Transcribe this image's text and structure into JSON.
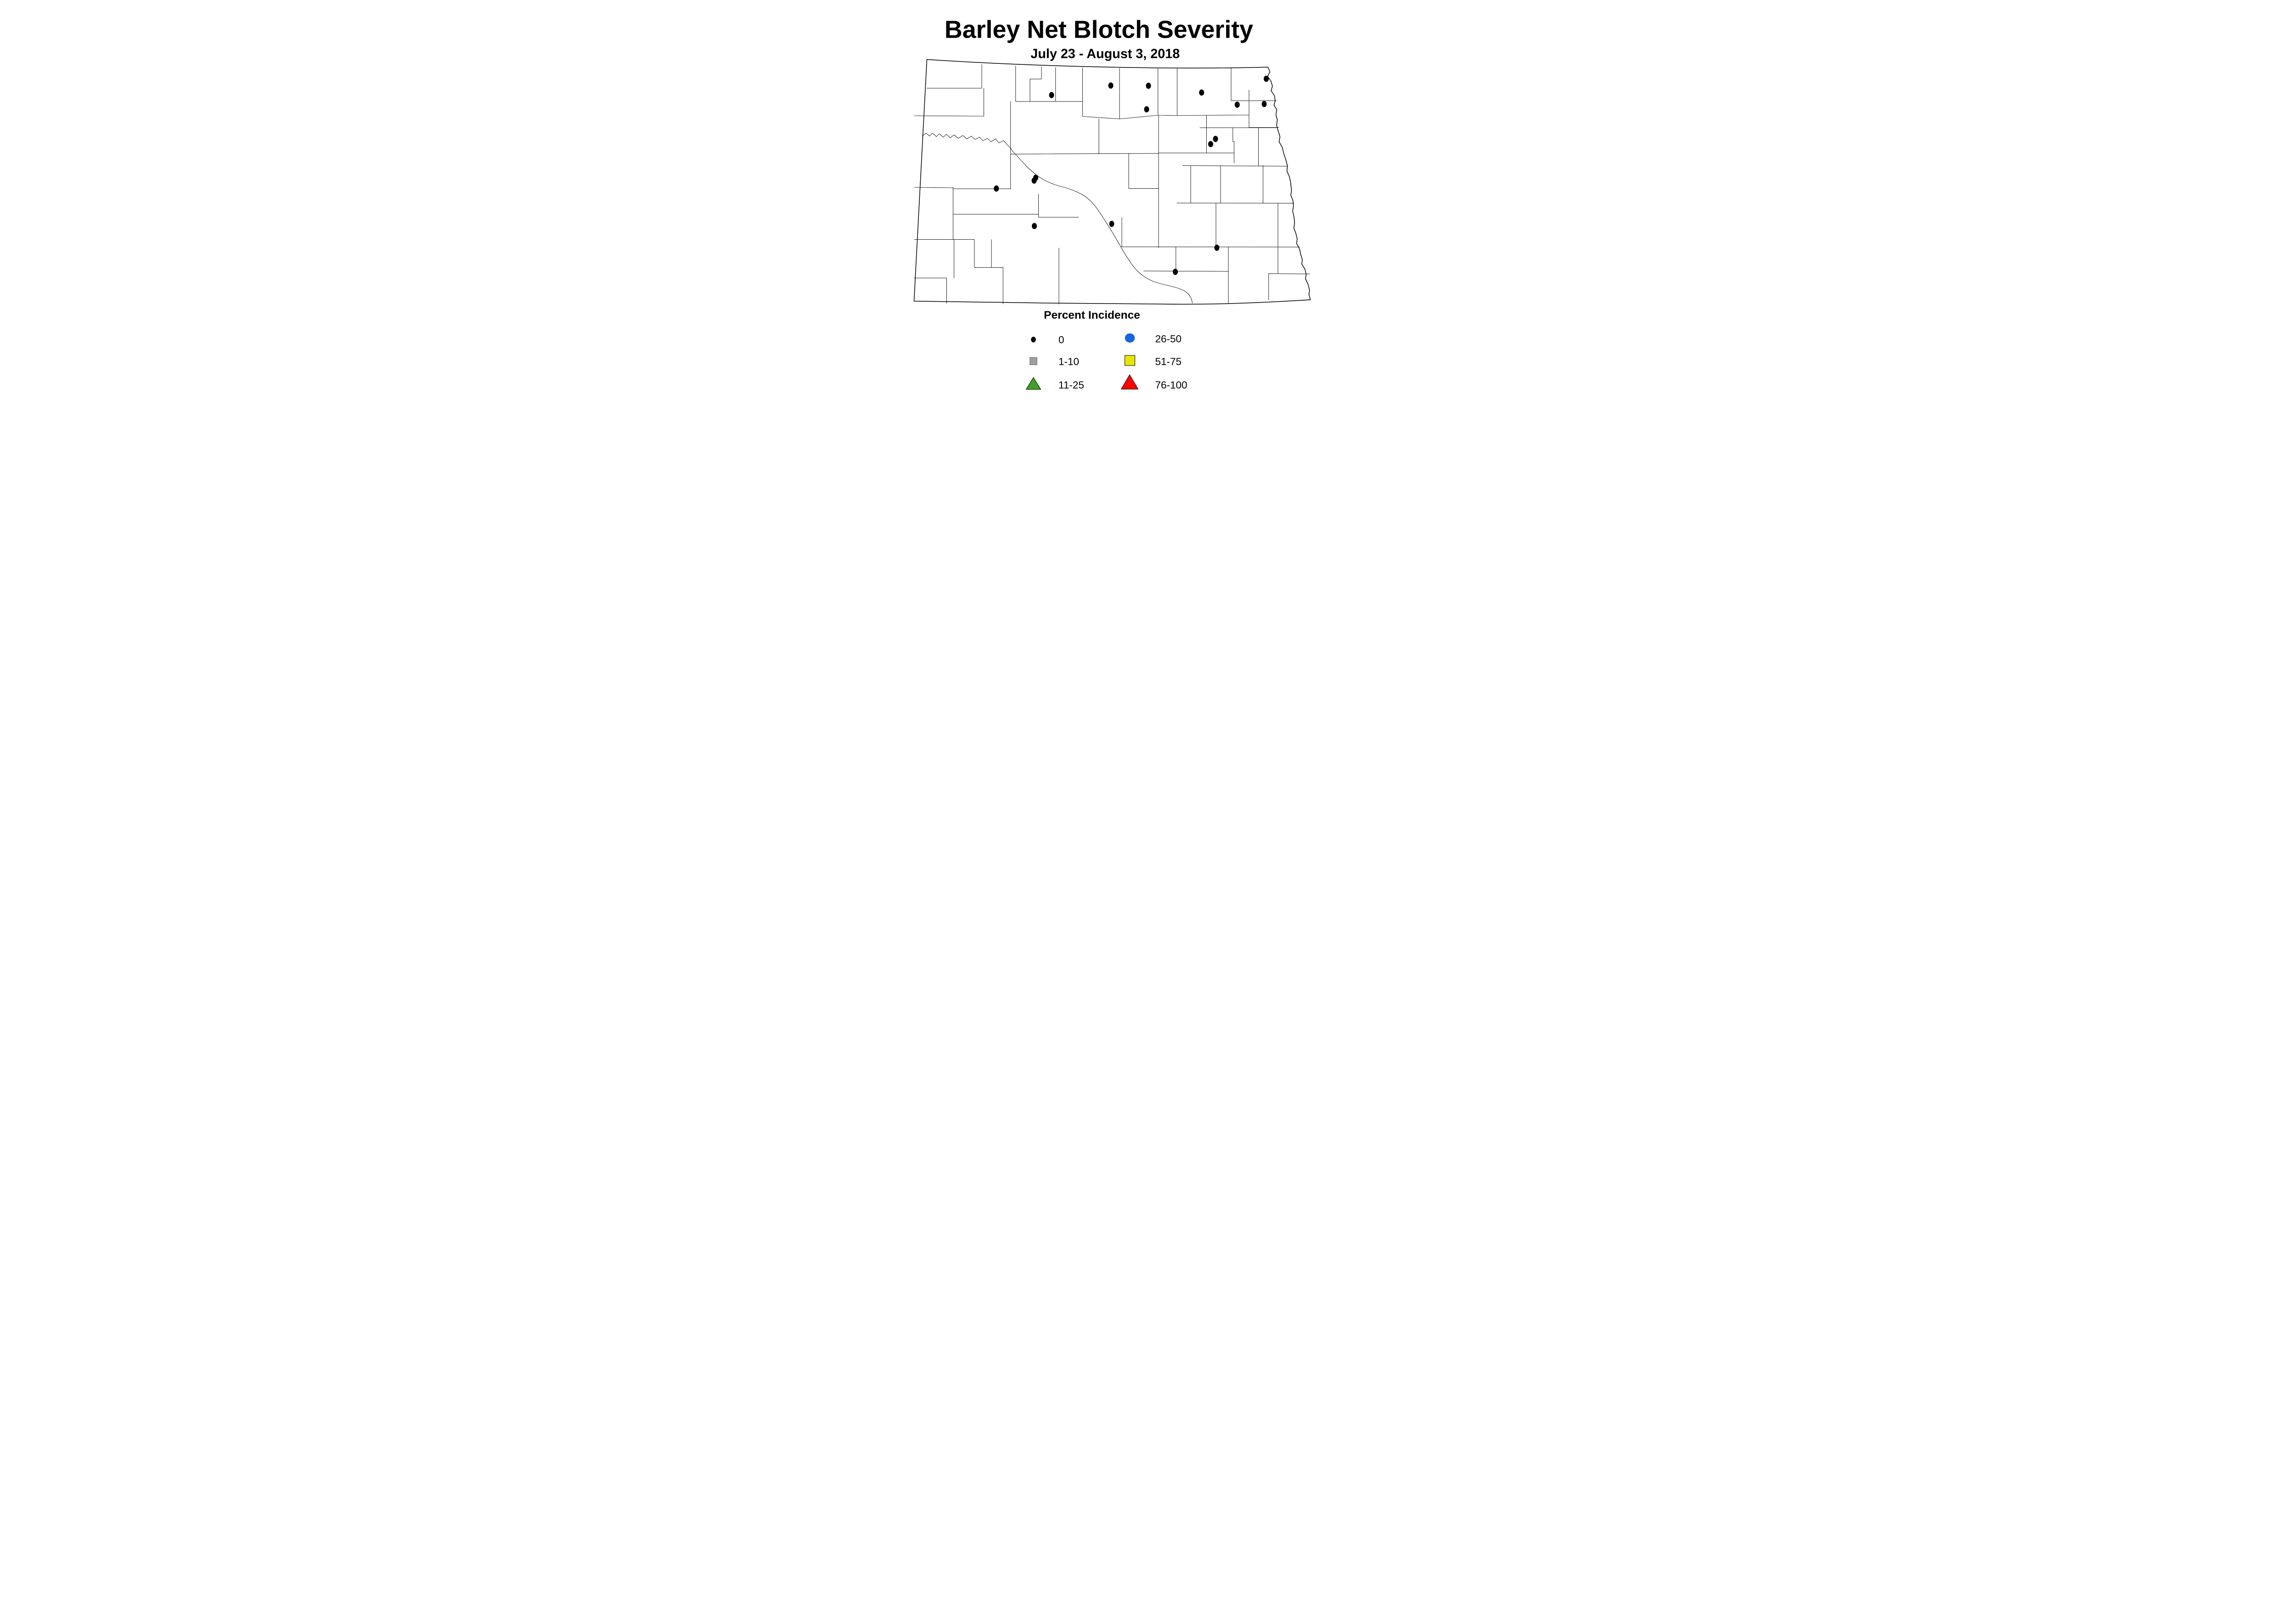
{
  "figure": {
    "title": "Barley Net Blotch Severity",
    "subtitle": "July 23 - August 3, 2018",
    "background_color": "#FFFFFF",
    "line_color": "#000000"
  },
  "map": {
    "region": "North Dakota counties",
    "marker": {
      "rx": 22,
      "ry": 27,
      "color": "#000000",
      "meaning": "survey site with 0 percent incidence"
    },
    "sites": [
      [
        2488,
        828
      ],
      [
        3004,
        745
      ],
      [
        3332,
        747
      ],
      [
        3795,
        806
      ],
      [
        4358,
        686
      ],
      [
        4105,
        912
      ],
      [
        4340,
        906
      ],
      [
        3316,
        952
      ],
      [
        3916,
        1210
      ],
      [
        3874,
        1255
      ],
      [
        2350,
        1548
      ],
      [
        2336,
        1573
      ],
      [
        2007,
        1642
      ],
      [
        2338,
        1969
      ],
      [
        3012,
        1950
      ],
      [
        3928,
        2158
      ],
      [
        3566,
        2368
      ]
    ]
  },
  "legend": {
    "title": "Percent Incidence",
    "items": [
      {
        "label": "0",
        "shape": "small-dot",
        "color": "#000000"
      },
      {
        "label": "1-10",
        "shape": "small-square",
        "color": "#9E9E9E"
      },
      {
        "label": "11-25",
        "shape": "small-triangle",
        "color": "#3FA125"
      },
      {
        "label": "26-50",
        "shape": "circle",
        "color": "#1565DB"
      },
      {
        "label": "51-75",
        "shape": "square",
        "color": "#E6E600"
      },
      {
        "label": "76-100",
        "shape": "triangle",
        "color": "#FF0000"
      }
    ]
  }
}
